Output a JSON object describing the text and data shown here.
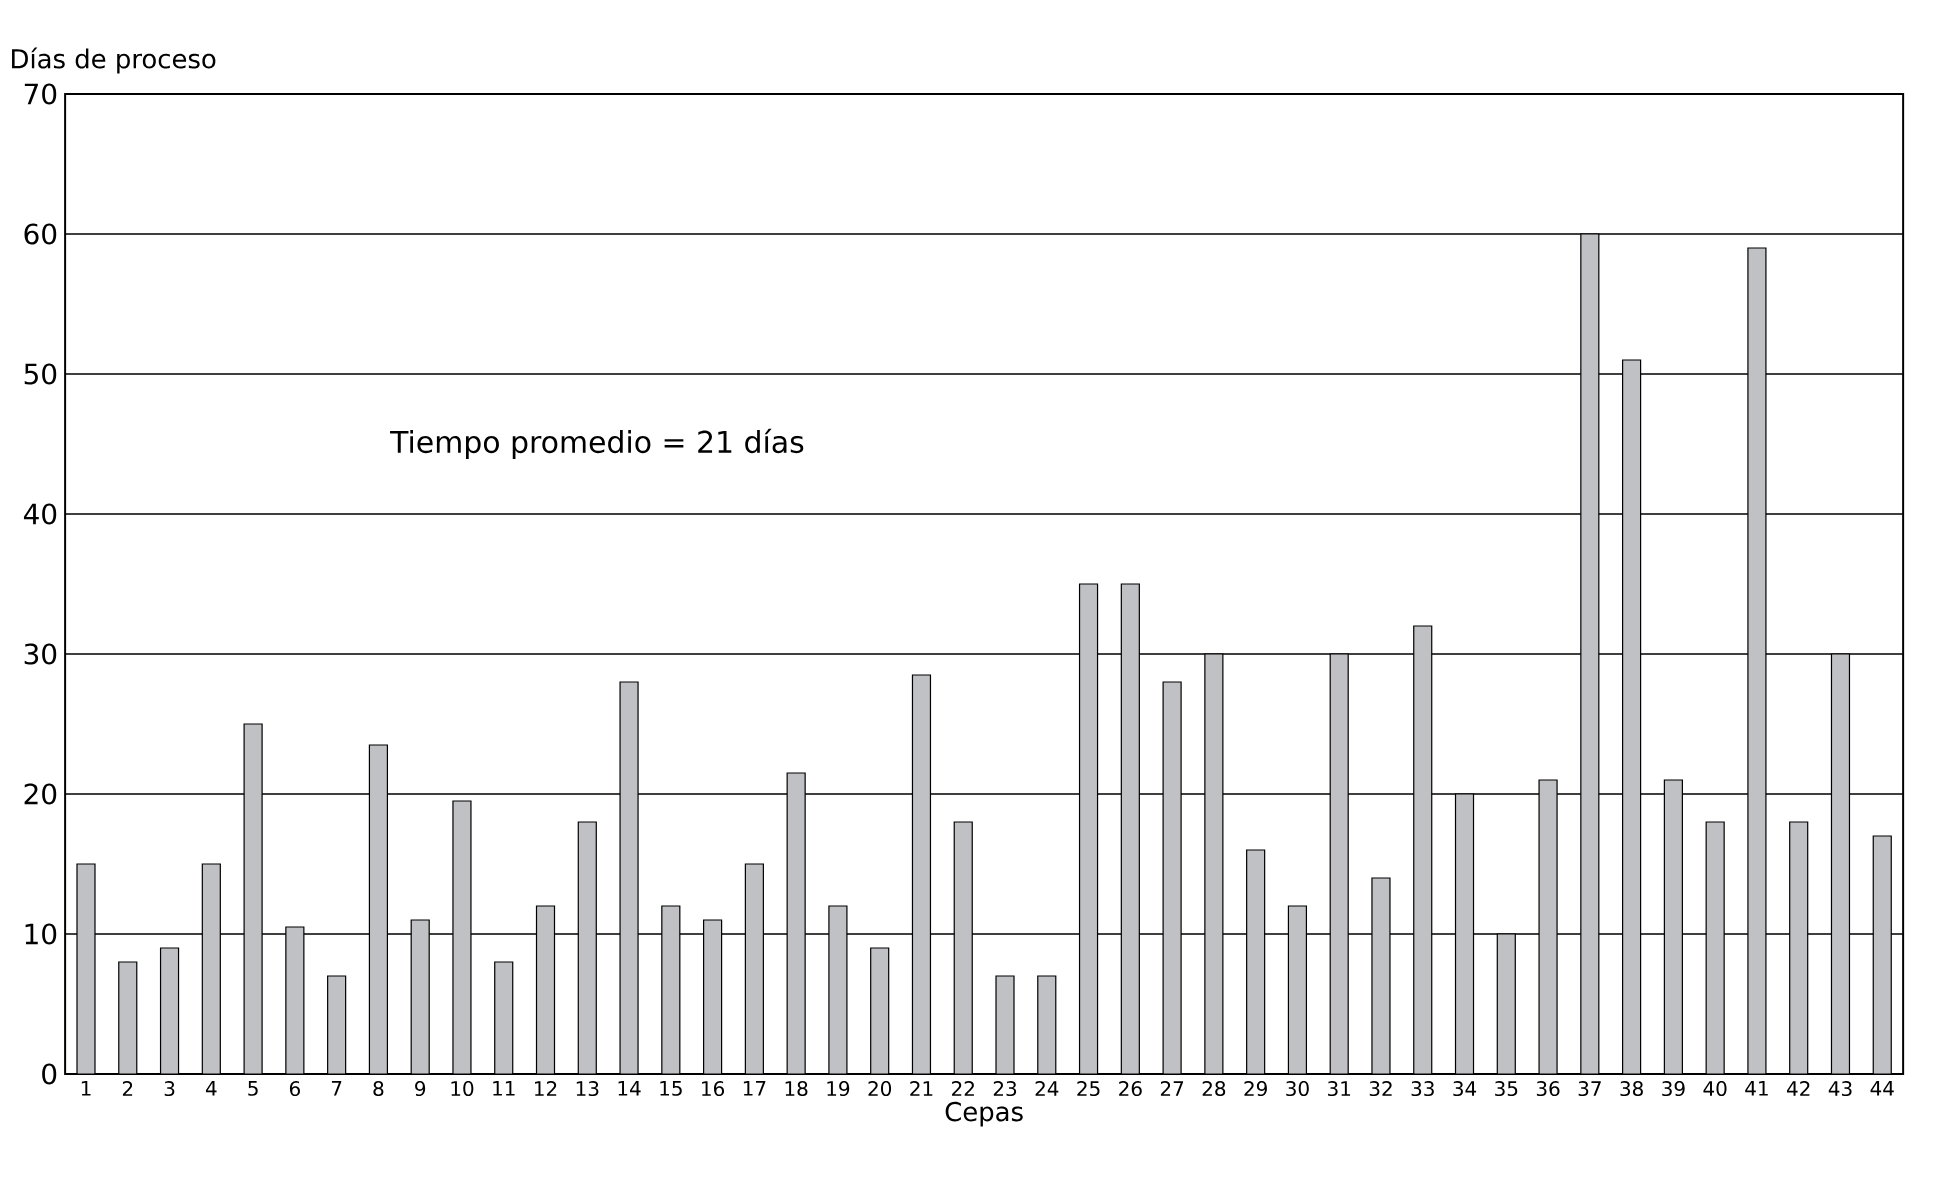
{
  "chart_data": {
    "type": "bar",
    "xlabel": "Cepas",
    "ylabel": "Días de proceso",
    "categories": [
      "1",
      "2",
      "3",
      "4",
      "5",
      "6",
      "7",
      "8",
      "9",
      "10",
      "11",
      "12",
      "13",
      "14",
      "15",
      "16",
      "17",
      "18",
      "19",
      "20",
      "21",
      "22",
      "23",
      "24",
      "25",
      "26",
      "27",
      "28",
      "29",
      "30",
      "31",
      "32",
      "33",
      "34",
      "35",
      "36",
      "37",
      "38",
      "39",
      "40",
      "41",
      "42",
      "43",
      "44"
    ],
    "values": [
      15,
      8,
      9,
      15,
      25,
      10.5,
      7,
      23.5,
      11,
      19.5,
      8,
      12,
      18,
      28,
      12,
      11,
      15,
      21.5,
      12,
      9,
      28.5,
      18,
      7,
      7,
      35,
      35,
      28,
      30,
      16,
      12,
      30,
      14,
      32,
      20,
      10,
      21,
      60,
      51,
      21,
      18,
      59,
      18,
      30,
      17
    ],
    "color": "#c0c1c5",
    "ylim": [
      0,
      70
    ],
    "yticks": [
      0,
      10,
      20,
      30,
      40,
      50,
      60,
      70
    ],
    "grid": "y",
    "annotations": [
      "Tiempo promedio = 21 días"
    ]
  }
}
